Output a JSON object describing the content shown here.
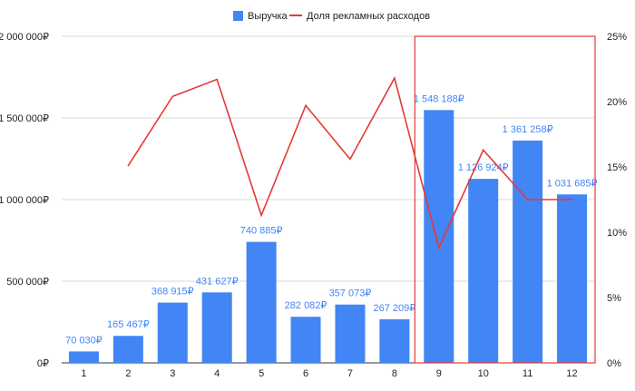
{
  "chart_data": {
    "type": "bar",
    "categories": [
      "1",
      "2",
      "3",
      "4",
      "5",
      "6",
      "7",
      "8",
      "9",
      "10",
      "11",
      "12"
    ],
    "series": [
      {
        "name": "Выручка",
        "type": "bar",
        "axis": "left",
        "color": "#4285f4",
        "values": [
          70030,
          165467,
          368915,
          431627,
          740885,
          282082,
          357073,
          267209,
          1548188,
          1126924,
          1361258,
          1031685
        ],
        "labels": [
          "70 030₽",
          "165 467₽",
          "368 915₽",
          "431 627₽",
          "740 885₽",
          "282 082₽",
          "357 073₽",
          "267 209₽",
          "1 548 188₽",
          "1 126 924₽",
          "1 361 258₽",
          "1 031 685₽"
        ]
      },
      {
        "name": "Доля рекламных расходов",
        "type": "line",
        "axis": "right",
        "color": "#e53935",
        "values": [
          null,
          15.1,
          20.4,
          21.7,
          11.3,
          19.7,
          15.6,
          21.8,
          8.8,
          16.3,
          12.5,
          12.5
        ]
      }
    ],
    "y_left": {
      "ylim": [
        0,
        2000000
      ],
      "ticks": [
        0,
        500000,
        1000000,
        1500000,
        2000000
      ],
      "tick_labels": [
        "0₽",
        "500 000₽",
        "1 000 000₽",
        "1 500 000₽",
        "2 000 000₽"
      ]
    },
    "y_right": {
      "ylim": [
        0,
        25
      ],
      "ticks": [
        0,
        5,
        10,
        15,
        20,
        25
      ],
      "tick_labels": [
        "0%",
        "5%",
        "10%",
        "15%",
        "20%",
        "25%"
      ]
    },
    "highlight": {
      "categories": [
        "9",
        "10",
        "11",
        "12"
      ],
      "color": "#e53935"
    },
    "grid": true,
    "legend": "top-center",
    "label_color": "#4285f4"
  }
}
